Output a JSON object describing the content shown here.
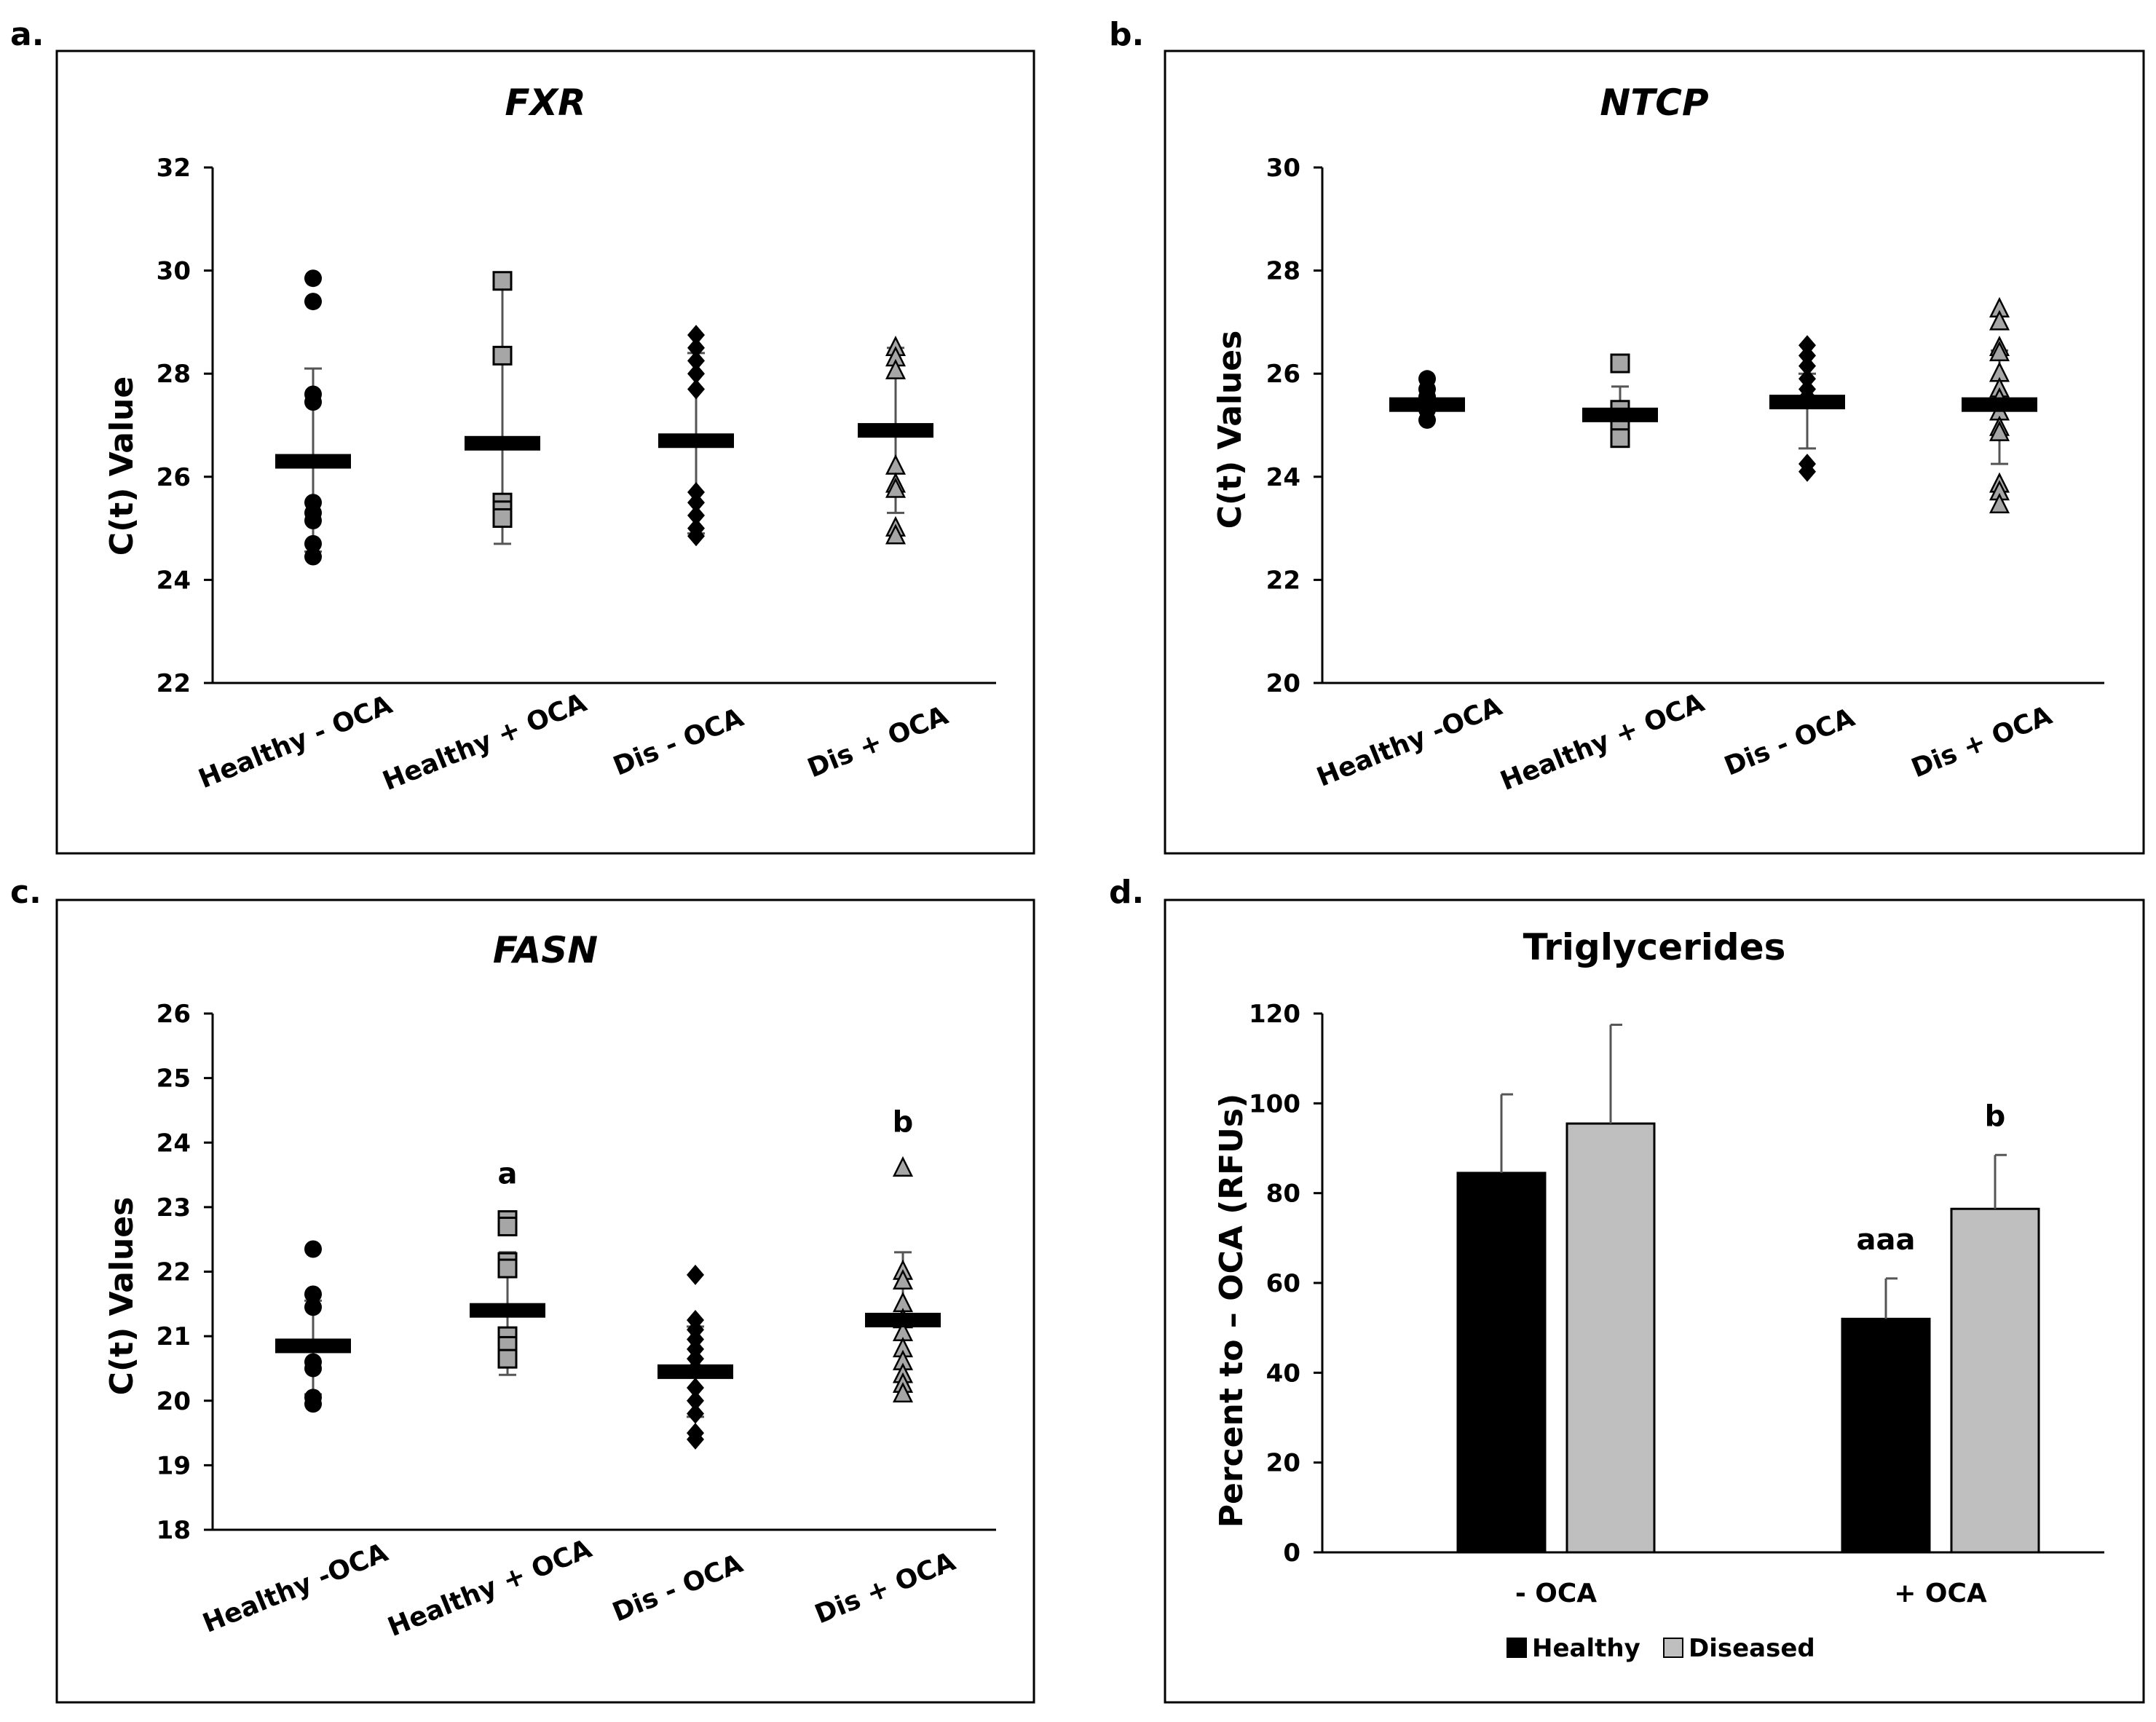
{
  "chart_data": [
    {
      "panel": "a.",
      "type": "scatter",
      "title": "FXR",
      "title_italic": true,
      "ylabel": "C(t) Value",
      "ylim": [
        22,
        32
      ],
      "yticks": [
        22,
        24,
        26,
        28,
        30,
        32
      ],
      "categories": [
        "Healthy - OCA",
        "Healthy + OCA",
        "Dis - OCA",
        "Dis + OCA"
      ],
      "groups": [
        {
          "marker": "circle",
          "color": "#000000",
          "mean": 26.3,
          "err_low": 24.55,
          "err_high": 28.1,
          "points": [
            29.85,
            29.4,
            27.6,
            27.45,
            25.5,
            25.3,
            25.15,
            24.7,
            24.45
          ]
        },
        {
          "marker": "square",
          "color": "#a6a6a6",
          "mean": 26.65,
          "err_low": 24.7,
          "err_high": 29.9,
          "points": [
            29.8,
            28.35,
            25.5,
            25.35,
            25.2
          ]
        },
        {
          "marker": "diamond",
          "color": "#000000",
          "mean": 26.7,
          "err_low": 24.9,
          "err_high": 28.4,
          "points": [
            28.75,
            28.5,
            28.25,
            28.0,
            27.7,
            25.7,
            25.5,
            25.25,
            25.0,
            24.85
          ]
        },
        {
          "marker": "triangle",
          "color": "#a6a6a6",
          "mean": 26.9,
          "err_low": 25.3,
          "err_high": 28.5,
          "points": [
            28.5,
            28.3,
            28.05,
            26.2,
            25.85,
            25.75,
            25.0,
            24.85
          ]
        }
      ],
      "significance": [
        "",
        "",
        "",
        ""
      ]
    },
    {
      "panel": "b.",
      "type": "scatter",
      "title": "NTCP",
      "title_italic": true,
      "ylabel": "C(t) Values",
      "ylim": [
        20,
        30
      ],
      "yticks": [
        20,
        22,
        24,
        26,
        28,
        30
      ],
      "categories": [
        "Healthy -OCA",
        "Healthy + OCA",
        "Dis - OCA",
        "Dis + OCA"
      ],
      "groups": [
        {
          "marker": "circle",
          "color": "#000000",
          "mean": 25.4,
          "err_low": 25.1,
          "err_high": 25.7,
          "points": [
            25.9,
            25.7,
            25.55,
            25.3,
            25.1
          ]
        },
        {
          "marker": "square",
          "color": "#a6a6a6",
          "mean": 25.2,
          "err_low": 24.8,
          "err_high": 25.75,
          "points": [
            26.2,
            25.3,
            25.0,
            24.75
          ]
        },
        {
          "marker": "diamond",
          "color": "#000000",
          "mean": 25.45,
          "err_low": 24.55,
          "err_high": 26.0,
          "points": [
            26.55,
            26.35,
            26.15,
            25.9,
            25.7,
            25.55,
            24.25,
            24.1
          ]
        },
        {
          "marker": "triangle",
          "color": "#a6a6a6",
          "mean": 25.4,
          "err_low": 24.25,
          "err_high": 26.45,
          "points": [
            27.25,
            27.0,
            26.5,
            26.4,
            26.0,
            25.7,
            25.5,
            25.25,
            24.95,
            24.85,
            23.85,
            23.7,
            23.45
          ]
        }
      ],
      "significance": [
        "",
        "",
        "",
        ""
      ]
    },
    {
      "panel": "c.",
      "type": "scatter",
      "title": "FASN",
      "title_italic": true,
      "ylabel": "C(t) Values",
      "ylim": [
        18,
        26
      ],
      "yticks": [
        18,
        19,
        20,
        21,
        22,
        23,
        24,
        25,
        26
      ],
      "categories": [
        "Healthy -OCA",
        "Healthy + OCA",
        "Dis - OCA",
        "Dis + OCA"
      ],
      "groups": [
        {
          "marker": "circle",
          "color": "#000000",
          "mean": 20.85,
          "err_low": 20.1,
          "err_high": 21.55,
          "points": [
            22.35,
            21.65,
            21.45,
            20.6,
            20.5,
            20.05,
            19.95
          ]
        },
        {
          "marker": "square",
          "color": "#a6a6a6",
          "mean": 21.4,
          "err_low": 20.4,
          "err_high": 22.3,
          "points": [
            22.8,
            22.7,
            22.15,
            22.05,
            21.0,
            20.85,
            20.65
          ]
        },
        {
          "marker": "diamond",
          "color": "#000000",
          "mean": 20.45,
          "err_low": 19.75,
          "err_high": 21.15,
          "points": [
            21.95,
            21.25,
            21.1,
            20.95,
            20.8,
            20.65,
            20.5,
            20.2,
            20.0,
            19.8,
            19.5,
            19.4
          ]
        },
        {
          "marker": "triangle",
          "color": "#a6a6a6",
          "mean": 21.25,
          "err_low": 20.3,
          "err_high": 22.3,
          "points": [
            23.6,
            22.0,
            21.85,
            21.5,
            21.25,
            21.05,
            20.8,
            20.6,
            20.4,
            20.25,
            20.1
          ]
        }
      ],
      "significance": [
        "",
        "a",
        "",
        "b"
      ]
    },
    {
      "panel": "d.",
      "type": "bar",
      "title": "Triglycerides",
      "title_italic": false,
      "ylabel": "Percent to – OCA (RFUs)",
      "ylim": [
        0,
        120
      ],
      "yticks": [
        0,
        20,
        40,
        60,
        80,
        100,
        120
      ],
      "categories": [
        "- OCA",
        "+ OCA"
      ],
      "series": [
        {
          "name": "Healthy",
          "color": "#000000",
          "values": [
            84.5,
            52
          ],
          "errors": [
            17.5,
            9
          ],
          "significance": [
            "",
            "aaa"
          ]
        },
        {
          "name": "Diseased",
          "color": "#bfbfbf",
          "values": [
            95.5,
            76.5
          ],
          "errors": [
            22,
            12
          ],
          "significance": [
            "",
            "b"
          ]
        }
      ],
      "legend": [
        "Healthy",
        "Diseased"
      ],
      "legend_position": "bottom"
    }
  ]
}
